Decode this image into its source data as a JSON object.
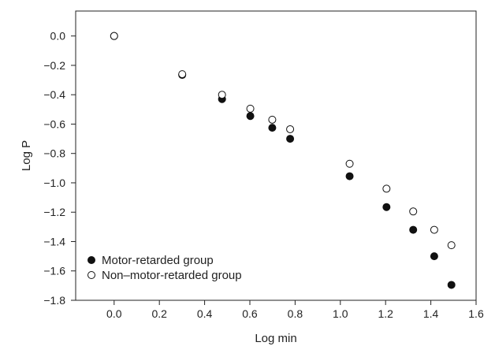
{
  "chart_data": {
    "type": "scatter",
    "xlabel": "Log min",
    "ylabel": "Log P",
    "xlim": [
      -0.17,
      1.6
    ],
    "ylim": [
      -1.8,
      0.17
    ],
    "x_ticks": [
      0.0,
      0.2,
      0.4,
      0.6,
      0.8,
      1.0,
      1.2,
      1.4,
      1.6
    ],
    "x_tick_labels": [
      "0.0",
      "0.2",
      "0.4",
      "0.6",
      "0.8",
      "1.0",
      "1.2",
      "1.4",
      "1.6"
    ],
    "y_ticks": [
      0.0,
      -0.2,
      -0.4,
      -0.6,
      -0.8,
      -1.0,
      -1.2,
      -1.4,
      -1.6,
      -1.8
    ],
    "y_tick_labels": [
      "0.0",
      "−0.2",
      "−0.4",
      "−0.6",
      "−0.8",
      "−1.0",
      "−1.2",
      "−1.4",
      "−1.6",
      "−1.8"
    ],
    "grid": false,
    "legend_position": "bottom-left",
    "series": [
      {
        "name": "Motor-retarded group",
        "marker": "filled-circle",
        "color": "#111111",
        "points": [
          {
            "x": 0.0,
            "y": 0.0
          },
          {
            "x": 0.301,
            "y": -0.265
          },
          {
            "x": 0.477,
            "y": -0.43
          },
          {
            "x": 0.602,
            "y": -0.545
          },
          {
            "x": 0.699,
            "y": -0.625
          },
          {
            "x": 0.778,
            "y": -0.7
          },
          {
            "x": 1.041,
            "y": -0.955
          },
          {
            "x": 1.204,
            "y": -1.165
          },
          {
            "x": 1.322,
            "y": -1.32
          },
          {
            "x": 1.415,
            "y": -1.5
          },
          {
            "x": 1.491,
            "y": -1.695
          }
        ]
      },
      {
        "name": "Non–motor-retarded group",
        "marker": "open-circle",
        "color": "#111111",
        "points": [
          {
            "x": 0.0,
            "y": 0.0
          },
          {
            "x": 0.301,
            "y": -0.26
          },
          {
            "x": 0.477,
            "y": -0.4
          },
          {
            "x": 0.602,
            "y": -0.495
          },
          {
            "x": 0.699,
            "y": -0.57
          },
          {
            "x": 0.778,
            "y": -0.635
          },
          {
            "x": 1.041,
            "y": -0.87
          },
          {
            "x": 1.204,
            "y": -1.04
          },
          {
            "x": 1.322,
            "y": -1.195
          },
          {
            "x": 1.415,
            "y": -1.32
          },
          {
            "x": 1.491,
            "y": -1.425
          }
        ]
      }
    ]
  }
}
